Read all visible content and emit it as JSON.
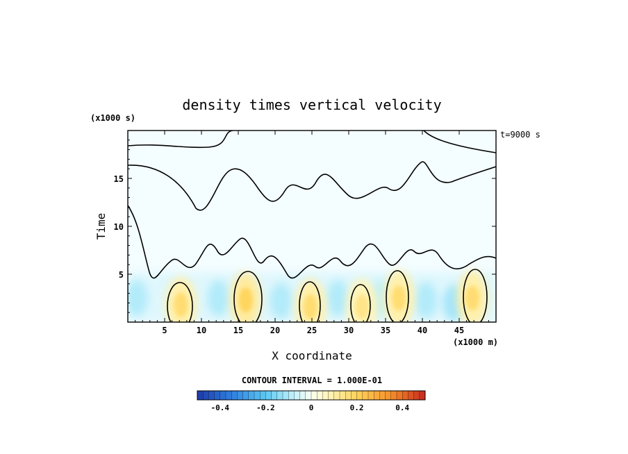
{
  "chart_data": {
    "type": "heatmap",
    "title": "density times vertical velocity",
    "xlabel": "X coordinate",
    "ylabel": "Time",
    "x_unit": "(x1000 m)",
    "y_unit": "(x1000 s)",
    "time_stamp": "t=9000 s",
    "xlim": [
      0,
      50
    ],
    "ylim": [
      0,
      20
    ],
    "x_ticks": [
      5,
      10,
      15,
      20,
      25,
      30,
      35,
      40,
      45
    ],
    "y_ticks": [
      5,
      10,
      15
    ],
    "contour_interval": "CONTOUR INTERVAL = 1.000E-01",
    "colorbar": {
      "range": [
        -0.5,
        0.5
      ],
      "tick_values": [
        -0.4,
        -0.2,
        0,
        0.2,
        0.4
      ],
      "tick_labels": [
        "-0.4",
        "-0.2",
        "0",
        "0.2",
        "0.4"
      ],
      "negative_color": "#1f3aa8",
      "positive_color": "#c8281e",
      "zero_color": "#fafff0"
    },
    "warm_cores": [
      {
        "x": 7.2,
        "t": 1.8,
        "value": 0.12
      },
      {
        "x": 16.0,
        "t": 2.3,
        "value": 0.14
      },
      {
        "x": 24.8,
        "t": 1.6,
        "value": 0.12
      },
      {
        "x": 31.8,
        "t": 1.6,
        "value": 0.1
      },
      {
        "x": 36.8,
        "t": 2.5,
        "value": 0.12
      },
      {
        "x": 46.8,
        "t": 2.5,
        "value": 0.12
      }
    ],
    "cool_bands": [
      {
        "x": 1.2,
        "t": 2.5,
        "value": -0.06
      },
      {
        "x": 12.3,
        "t": 2.5,
        "value": -0.06
      },
      {
        "x": 20.8,
        "t": 2.2,
        "value": -0.06
      },
      {
        "x": 28.5,
        "t": 2.5,
        "value": -0.06
      },
      {
        "x": 34.3,
        "t": 2.5,
        "value": -0.05
      },
      {
        "x": 40.5,
        "t": 2.3,
        "value": -0.06
      },
      {
        "x": 44.3,
        "t": 2.0,
        "value": -0.07
      }
    ]
  }
}
